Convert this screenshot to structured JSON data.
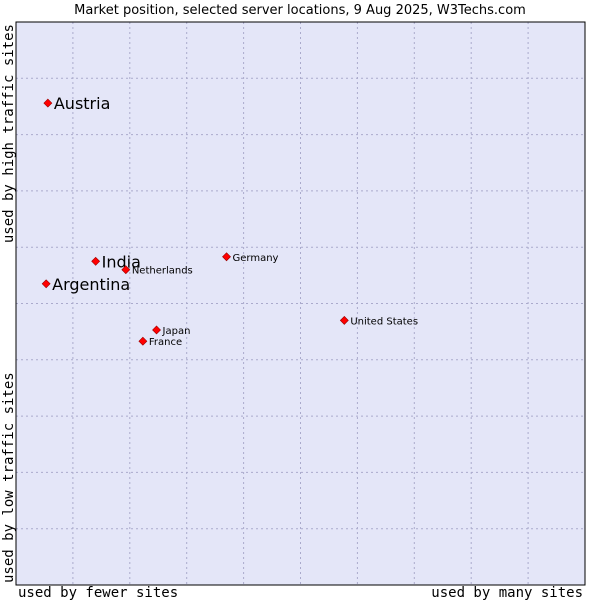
{
  "chart_data": {
    "type": "scatter",
    "title": "Market position, selected server locations, 9 Aug 2025, W3Techs.com",
    "xlabel_left": "used by fewer sites",
    "xlabel_right": "used by many sites",
    "ylabel_top": "used by high traffic sites",
    "ylabel_bottom": "used by low traffic sites",
    "xlim": [
      0,
      100
    ],
    "ylim": [
      0,
      100
    ],
    "grid": true,
    "colors": {
      "plot_background": "#e4e6f8",
      "grid": "#aaaacc",
      "marker": "#ff0000",
      "marker_outline": "#990000",
      "border": "#000000"
    },
    "points": [
      {
        "name": "Austria",
        "x": 5.6,
        "y": 85.6,
        "emphasis": true
      },
      {
        "name": "India",
        "x": 14.0,
        "y": 57.5,
        "emphasis": true
      },
      {
        "name": "Argentina",
        "x": 5.3,
        "y": 53.5,
        "emphasis": true
      },
      {
        "name": "Netherlands",
        "x": 19.3,
        "y": 56.0,
        "emphasis": false
      },
      {
        "name": "Germany",
        "x": 37.0,
        "y": 58.3,
        "emphasis": false
      },
      {
        "name": "United States",
        "x": 57.7,
        "y": 47.0,
        "emphasis": false
      },
      {
        "name": "Japan",
        "x": 24.7,
        "y": 45.3,
        "emphasis": false
      },
      {
        "name": "France",
        "x": 22.3,
        "y": 43.3,
        "emphasis": false
      }
    ]
  }
}
